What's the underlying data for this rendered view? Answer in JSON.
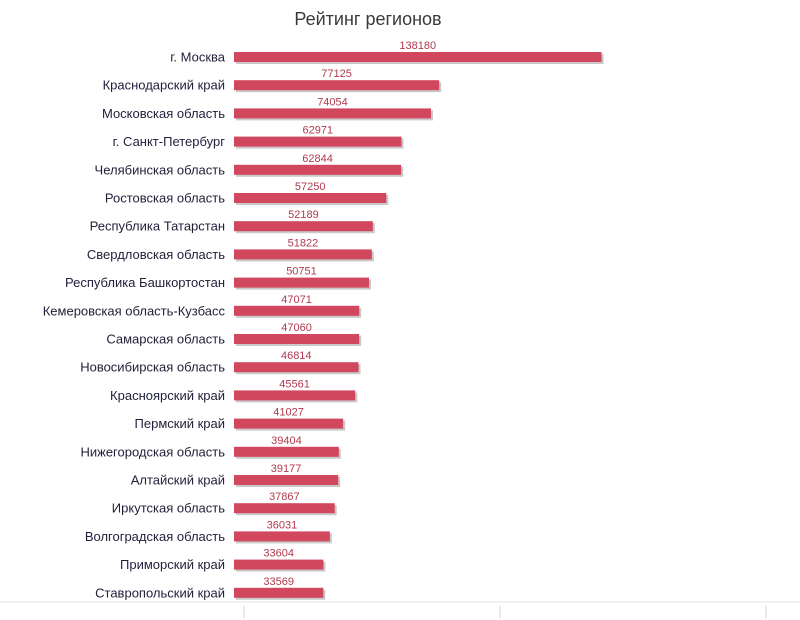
{
  "chart_data": {
    "type": "bar",
    "orientation": "horizontal",
    "title": "Рейтинг регионов",
    "categories": [
      "г. Москва",
      "Краснодарский край",
      "Московская область",
      "г. Санкт-Петербург",
      "Челябинская область",
      "Ростовская область",
      "Республика Татарстан",
      "Свердловская область",
      "Республика Башкортостан",
      "Кемеровская область-Кузбасс",
      "Самарская область",
      "Новосибирская область",
      "Красноярский край",
      "Пермский край",
      "Нижегородская область",
      "Алтайский край",
      "Иркутская область",
      "Волгоградская область",
      "Приморский край",
      "Ставропольский край"
    ],
    "values": [
      138180,
      77125,
      74054,
      62971,
      62844,
      57250,
      52189,
      51822,
      50751,
      47071,
      47060,
      46814,
      45561,
      41027,
      39404,
      39177,
      37867,
      36031,
      33604,
      33569
    ],
    "xlim": [
      0,
      200000
    ],
    "grid": false,
    "legend": "none",
    "bar_color": "#d1475e",
    "bar_shadow_color": "#c9c9c9"
  }
}
